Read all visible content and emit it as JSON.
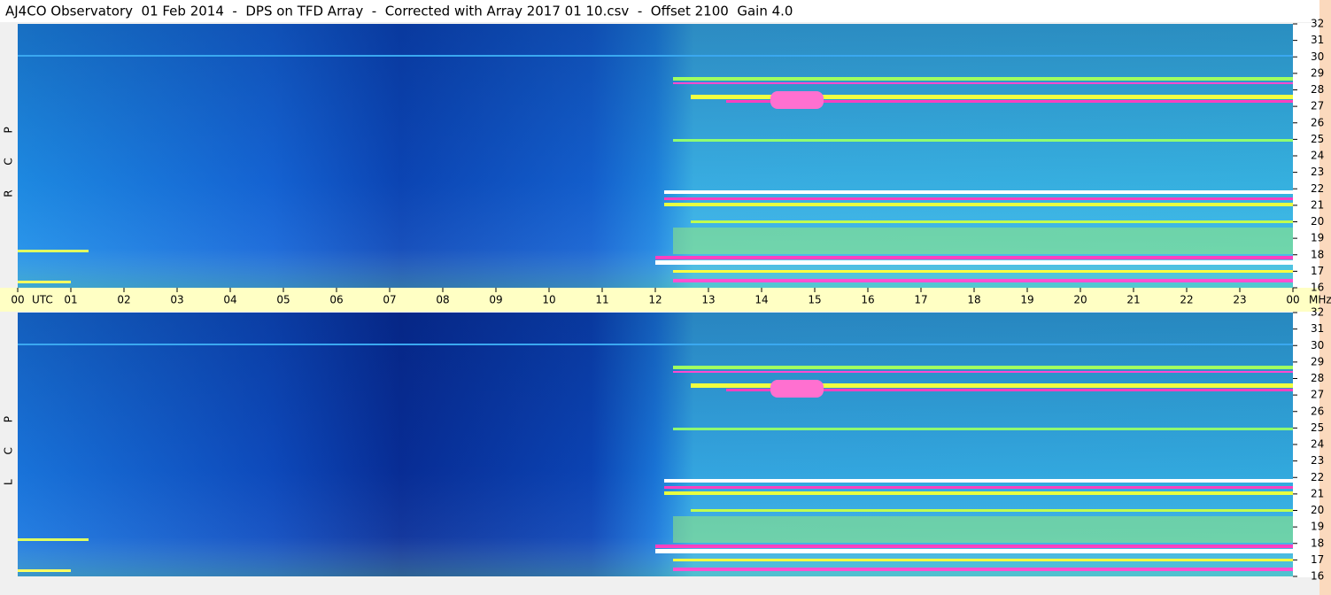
{
  "chart_data": {
    "type": "spectrogram",
    "title": "AJ4CO Observatory  01 Feb 2014  -  DPS on TFD Array  -  Corrected with Array 2017 01 10.csv  -  Offset 2100  Gain 4.0",
    "panels": [
      {
        "name": "R C P"
      },
      {
        "name": "L C P"
      }
    ],
    "x_unit": "UTC",
    "y_unit": "MHz",
    "xlim": [
      0,
      24
    ],
    "xticks": [
      {
        "value": 0,
        "label": "00"
      },
      {
        "value": 1,
        "label": "01"
      },
      {
        "value": 2,
        "label": "02"
      },
      {
        "value": 3,
        "label": "03"
      },
      {
        "value": 4,
        "label": "04"
      },
      {
        "value": 5,
        "label": "05"
      },
      {
        "value": 6,
        "label": "06"
      },
      {
        "value": 7,
        "label": "07"
      },
      {
        "value": 8,
        "label": "08"
      },
      {
        "value": 9,
        "label": "09"
      },
      {
        "value": 10,
        "label": "10"
      },
      {
        "value": 11,
        "label": "11"
      },
      {
        "value": 12,
        "label": "12"
      },
      {
        "value": 13,
        "label": "13"
      },
      {
        "value": 14,
        "label": "14"
      },
      {
        "value": 15,
        "label": "15"
      },
      {
        "value": 16,
        "label": "16"
      },
      {
        "value": 17,
        "label": "17"
      },
      {
        "value": 18,
        "label": "18"
      },
      {
        "value": 19,
        "label": "19"
      },
      {
        "value": 20,
        "label": "20"
      },
      {
        "value": 21,
        "label": "21"
      },
      {
        "value": 22,
        "label": "22"
      },
      {
        "value": 23,
        "label": "23"
      },
      {
        "value": 24,
        "label": "00"
      }
    ],
    "ylim": [
      16,
      32
    ],
    "yticks": [
      16,
      17,
      18,
      19,
      20,
      21,
      22,
      23,
      24,
      25,
      26,
      27,
      28,
      29,
      30,
      31,
      32
    ]
  }
}
